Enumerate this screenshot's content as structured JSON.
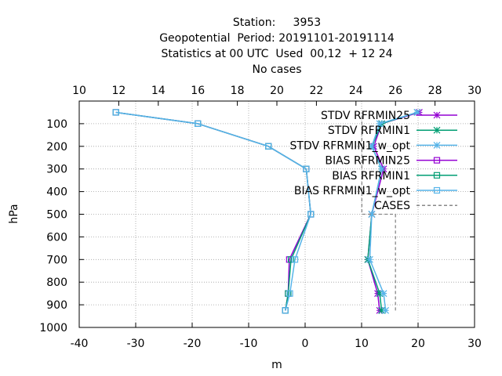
{
  "chart_data": {
    "type": "line",
    "title_lines": [
      "Station:     3953",
      "Geopotential  Period: 20191101-20191114",
      "Statistics at 00 UTC  Used  00,12  + 12 24",
      "No cases"
    ],
    "xlabel": "m",
    "ylabel": "hPa",
    "xlim": [
      -40,
      30
    ],
    "x_ticks": [
      -40,
      -30,
      -20,
      -10,
      0,
      10,
      20,
      30
    ],
    "x2lim": [
      10,
      30
    ],
    "x2_ticks": [
      10,
      12,
      14,
      16,
      18,
      20,
      22,
      24,
      26,
      28,
      30
    ],
    "ylim": [
      1000,
      0
    ],
    "y_ticks": [
      100,
      200,
      300,
      400,
      500,
      600,
      700,
      800,
      900,
      1000
    ],
    "grid": true,
    "legend_position": "top-right",
    "levels": [
      50,
      100,
      200,
      300,
      500,
      700,
      850,
      925
    ],
    "series": [
      {
        "name": "STDV RFRMIN25",
        "color": "#9400d3",
        "marker": "x-star",
        "values": [
          27.2,
          25.3,
          24.9,
          25.4,
          24.8,
          24.6,
          25.1,
          25.2
        ]
      },
      {
        "name": "STDV RFRMIN1",
        "color": "#009e73",
        "marker": "x-star",
        "values": [
          27.1,
          25.3,
          24.8,
          25.3,
          24.8,
          24.6,
          25.2,
          25.3
        ]
      },
      {
        "name": "STDV RFRMIN1_w_opt",
        "color": "#56b4e9",
        "marker": "x-star",
        "values": [
          27.1,
          25.2,
          24.8,
          25.3,
          24.8,
          24.7,
          25.4,
          25.5
        ]
      },
      {
        "name": "BIAS RFRMIN25",
        "color": "#9400d3",
        "marker": "square",
        "values": [
          -33.5,
          -19.0,
          -6.5,
          0.2,
          1.0,
          -2.8,
          -3.0,
          -3.5
        ]
      },
      {
        "name": "BIAS RFRMIN1",
        "color": "#009e73",
        "marker": "square",
        "values": [
          -33.5,
          -19.0,
          -6.5,
          0.2,
          1.0,
          -2.5,
          -3.0,
          -3.5
        ]
      },
      {
        "name": "BIAS RFRMIN1_w_opt",
        "color": "#56b4e9",
        "marker": "square",
        "values": [
          -33.5,
          -19.0,
          -6.5,
          0.2,
          1.0,
          -1.8,
          -2.7,
          -3.5
        ]
      },
      {
        "name": "CASES",
        "color": "#888888",
        "marker": "none",
        "dashed": true,
        "values": [
          0,
          0,
          0,
          0,
          0,
          0,
          0,
          0
        ]
      }
    ],
    "cases_polyline": [
      [
        26.0,
        925
      ],
      [
        26.0,
        500
      ],
      [
        24.3,
        500
      ],
      [
        24.3,
        50
      ]
    ]
  }
}
